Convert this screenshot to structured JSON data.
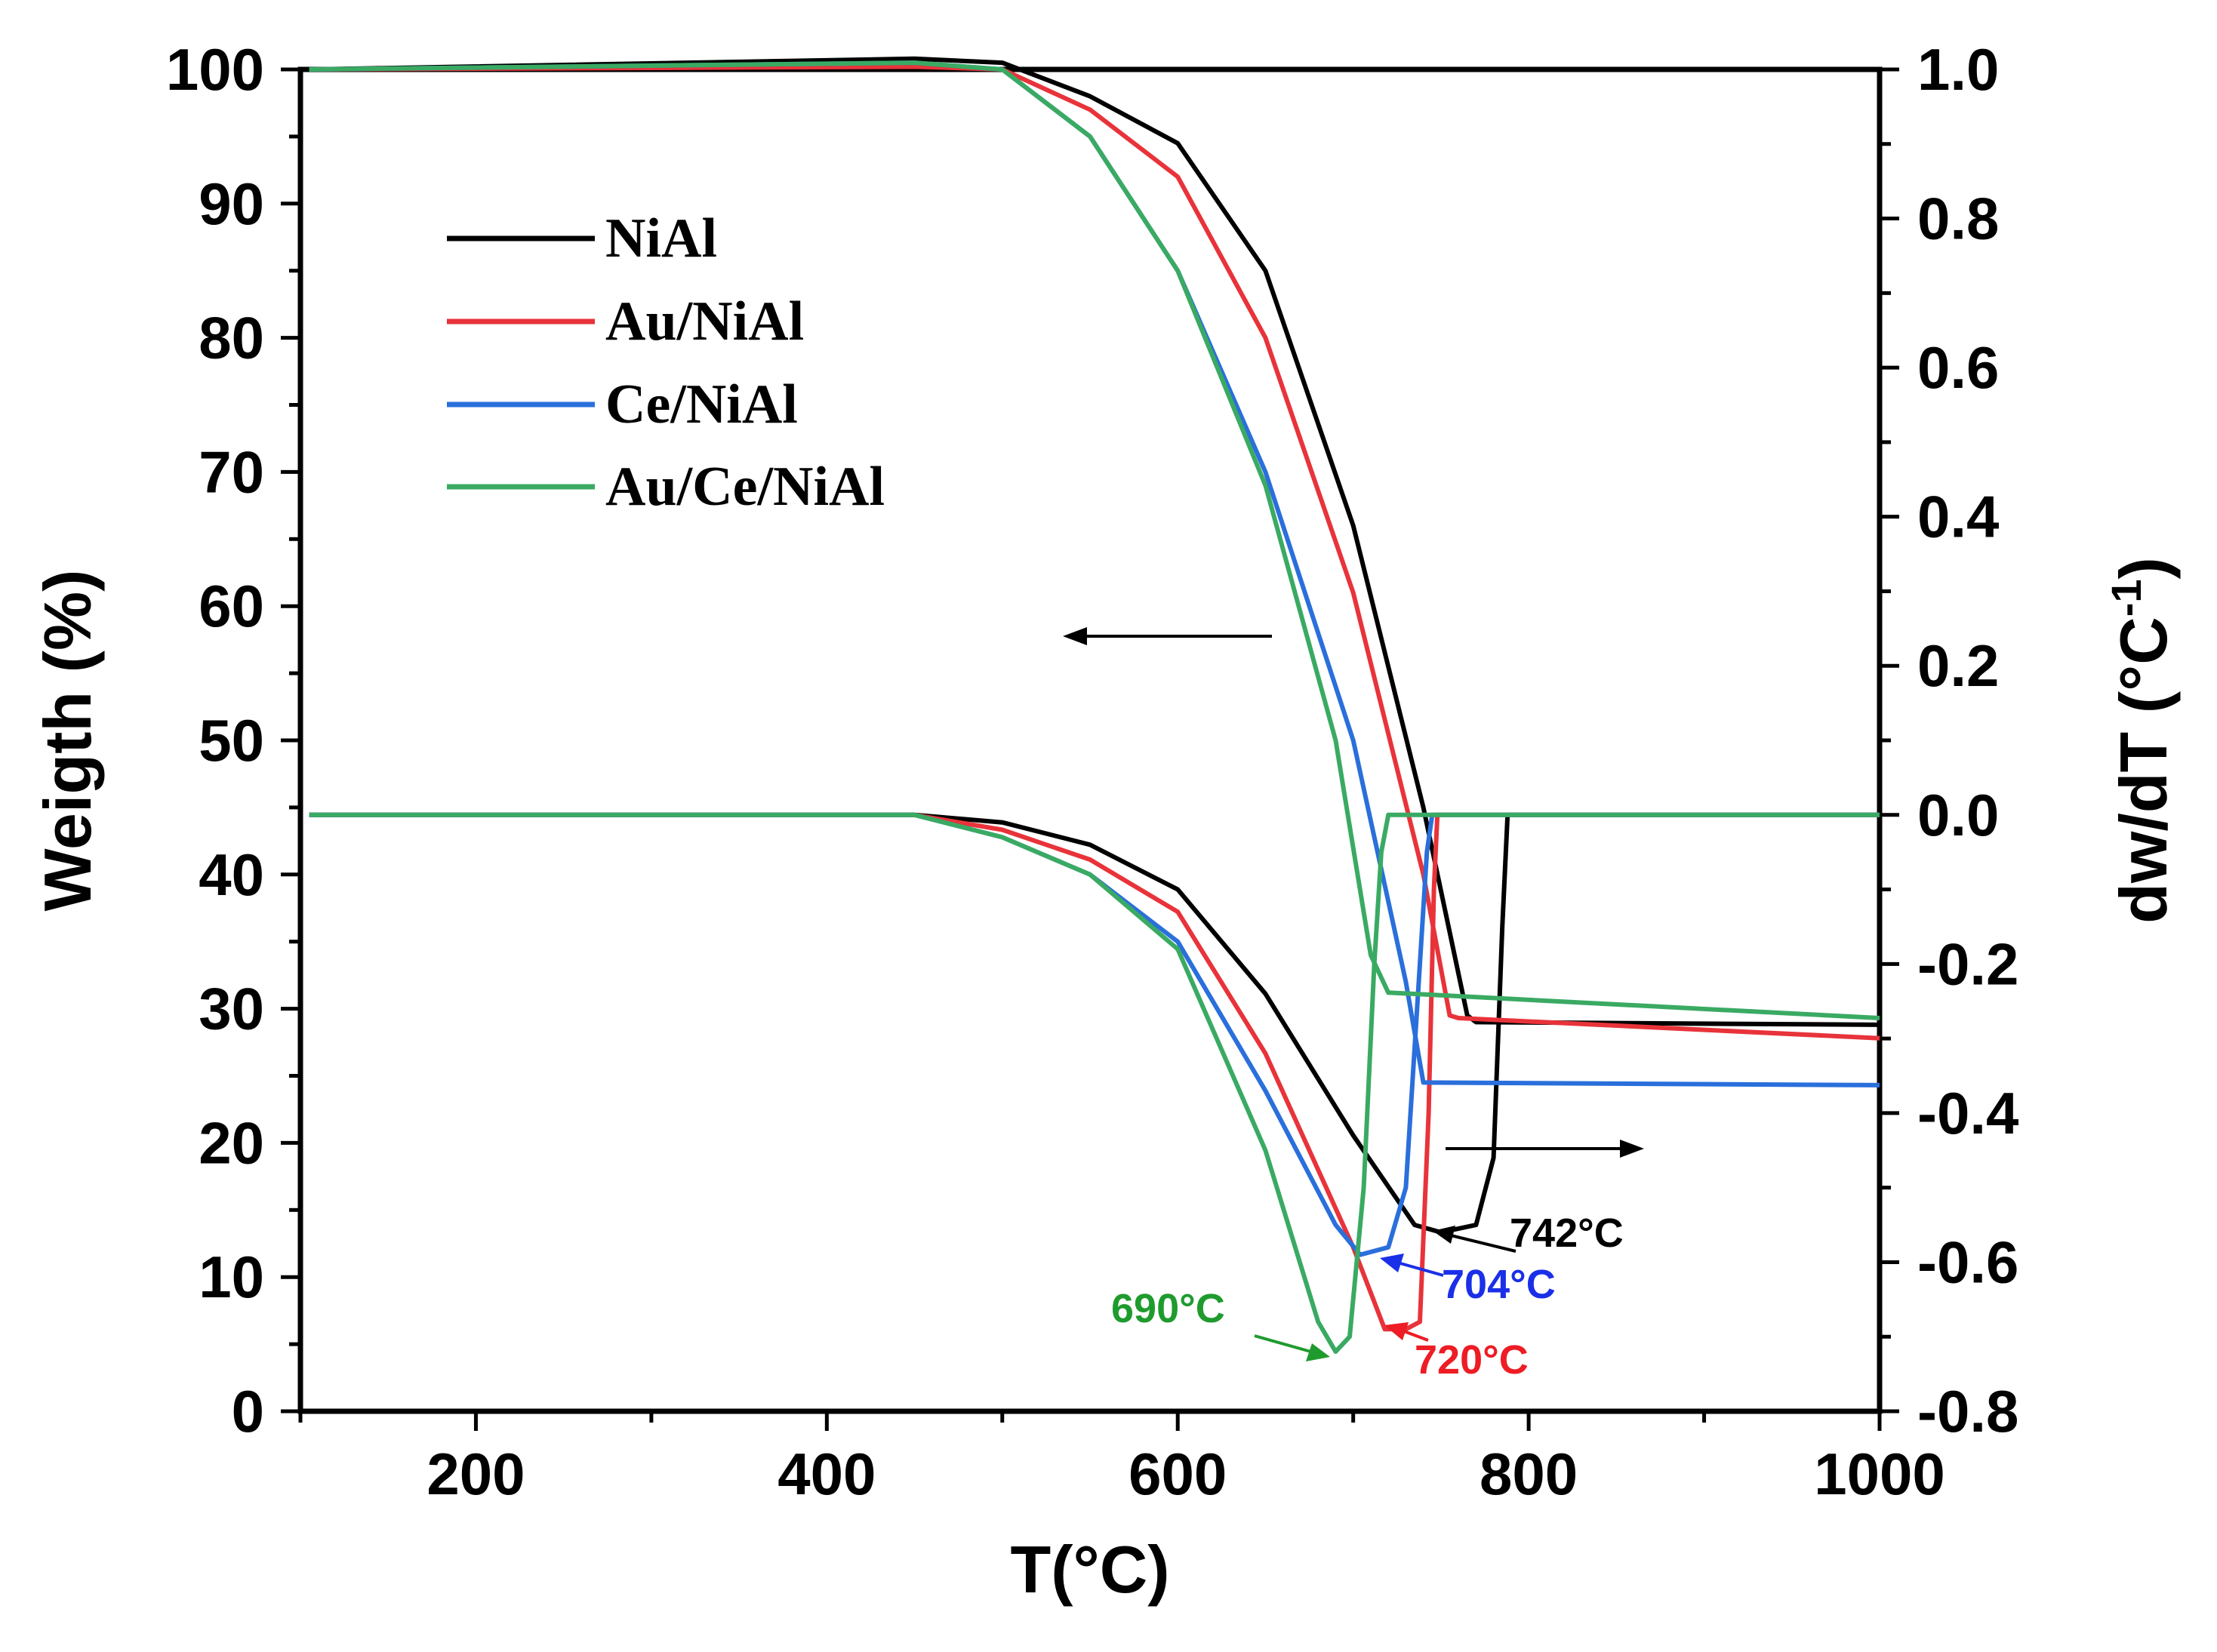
{
  "chart_data": {
    "type": "line",
    "x_axis": {
      "label": "T(°C)",
      "range": [
        100,
        1000
      ],
      "ticks": [
        200,
        400,
        600,
        800,
        1000
      ]
    },
    "y_left": {
      "label": "Weigth (%)",
      "range": [
        0,
        100
      ],
      "ticks": [
        0,
        10,
        20,
        30,
        40,
        50,
        60,
        70,
        80,
        90,
        100
      ]
    },
    "y_right": {
      "label_main": "dw/dT (°C",
      "label_sup": "-1",
      "label_close": ")",
      "range": [
        -0.8,
        1.0
      ],
      "ticks": [
        -0.8,
        -0.6,
        -0.4,
        -0.2,
        0.0,
        0.2,
        0.4,
        0.6,
        0.8,
        1.0
      ],
      "tick_labels": [
        "-0.8",
        "-0.6",
        "-0.4",
        "-0.2",
        "0.0",
        "0.2",
        "0.4",
        "0.6",
        "0.8",
        "1.0"
      ]
    },
    "legend_position": "top-left",
    "series": [
      {
        "name": "NiAl",
        "color": "#000000",
        "weight": [
          [
            105,
            100
          ],
          [
            450,
            100.8
          ],
          [
            500,
            100.5
          ],
          [
            550,
            98
          ],
          [
            600,
            94.5
          ],
          [
            650,
            85
          ],
          [
            700,
            66
          ],
          [
            740,
            45
          ],
          [
            765,
            29.5
          ],
          [
            770,
            29
          ],
          [
            1000,
            28.8
          ]
        ],
        "deriv": [
          [
            105,
            0
          ],
          [
            450,
            0
          ],
          [
            500,
            -0.01
          ],
          [
            550,
            -0.04
          ],
          [
            600,
            -0.1
          ],
          [
            650,
            -0.24
          ],
          [
            700,
            -0.43
          ],
          [
            735,
            -0.55
          ],
          [
            750,
            -0.56
          ],
          [
            770,
            -0.55
          ],
          [
            780,
            -0.46
          ],
          [
            785,
            -0.15
          ],
          [
            788,
            0
          ],
          [
            1000,
            0
          ]
        ]
      },
      {
        "name": "Au/NiAl",
        "color": "#e8333a",
        "weight": [
          [
            105,
            100
          ],
          [
            450,
            100.2
          ],
          [
            500,
            100
          ],
          [
            550,
            97
          ],
          [
            600,
            92
          ],
          [
            650,
            80
          ],
          [
            700,
            61
          ],
          [
            740,
            40
          ],
          [
            755,
            29.5
          ],
          [
            760,
            29.3
          ],
          [
            1000,
            27.8
          ]
        ],
        "deriv": [
          [
            105,
            0
          ],
          [
            450,
            0
          ],
          [
            500,
            -0.02
          ],
          [
            550,
            -0.06
          ],
          [
            600,
            -0.13
          ],
          [
            650,
            -0.32
          ],
          [
            700,
            -0.58
          ],
          [
            718,
            -0.69
          ],
          [
            730,
            -0.69
          ],
          [
            738,
            -0.68
          ],
          [
            743,
            -0.4
          ],
          [
            746,
            -0.1
          ],
          [
            748,
            0
          ],
          [
            1000,
            0
          ]
        ]
      },
      {
        "name": "Ce/NiAl",
        "color": "#2a6fdb",
        "weight": [
          [
            105,
            100
          ],
          [
            450,
            100.5
          ],
          [
            500,
            100
          ],
          [
            550,
            95
          ],
          [
            600,
            85
          ],
          [
            650,
            70
          ],
          [
            700,
            50
          ],
          [
            730,
            32
          ],
          [
            740,
            24.5
          ],
          [
            1000,
            24.3
          ]
        ],
        "deriv": [
          [
            105,
            0
          ],
          [
            450,
            0
          ],
          [
            500,
            -0.03
          ],
          [
            550,
            -0.08
          ],
          [
            600,
            -0.17
          ],
          [
            650,
            -0.37
          ],
          [
            690,
            -0.55
          ],
          [
            704,
            -0.59
          ],
          [
            720,
            -0.58
          ],
          [
            730,
            -0.5
          ],
          [
            738,
            -0.2
          ],
          [
            742,
            -0.05
          ],
          [
            745,
            0
          ],
          [
            1000,
            0
          ]
        ]
      },
      {
        "name": "Au/Ce/NiAl",
        "color": "#3aaa63",
        "weight": [
          [
            105,
            100
          ],
          [
            450,
            100.5
          ],
          [
            500,
            100
          ],
          [
            550,
            95
          ],
          [
            600,
            85
          ],
          [
            650,
            69
          ],
          [
            690,
            50
          ],
          [
            710,
            34
          ],
          [
            720,
            31.2
          ],
          [
            750,
            31
          ],
          [
            1000,
            29.3
          ]
        ],
        "deriv": [
          [
            105,
            0
          ],
          [
            450,
            0
          ],
          [
            500,
            -0.03
          ],
          [
            550,
            -0.08
          ],
          [
            600,
            -0.18
          ],
          [
            650,
            -0.45
          ],
          [
            680,
            -0.68
          ],
          [
            690,
            -0.72
          ],
          [
            698,
            -0.7
          ],
          [
            706,
            -0.5
          ],
          [
            712,
            -0.2
          ],
          [
            716,
            -0.05
          ],
          [
            720,
            0
          ],
          [
            1000,
            0
          ]
        ]
      }
    ],
    "annotations": [
      {
        "text": "742°C",
        "color": "#000000",
        "series": "NiAl"
      },
      {
        "text": "704°C",
        "color": "#1a2fe8",
        "series": "Ce/NiAl"
      },
      {
        "text": "720°C",
        "color": "#ee1c24",
        "series": "Au/NiAl"
      },
      {
        "text": "690°C",
        "color": "#1f9b2e",
        "series": "Au/Ce/NiAl"
      }
    ]
  }
}
